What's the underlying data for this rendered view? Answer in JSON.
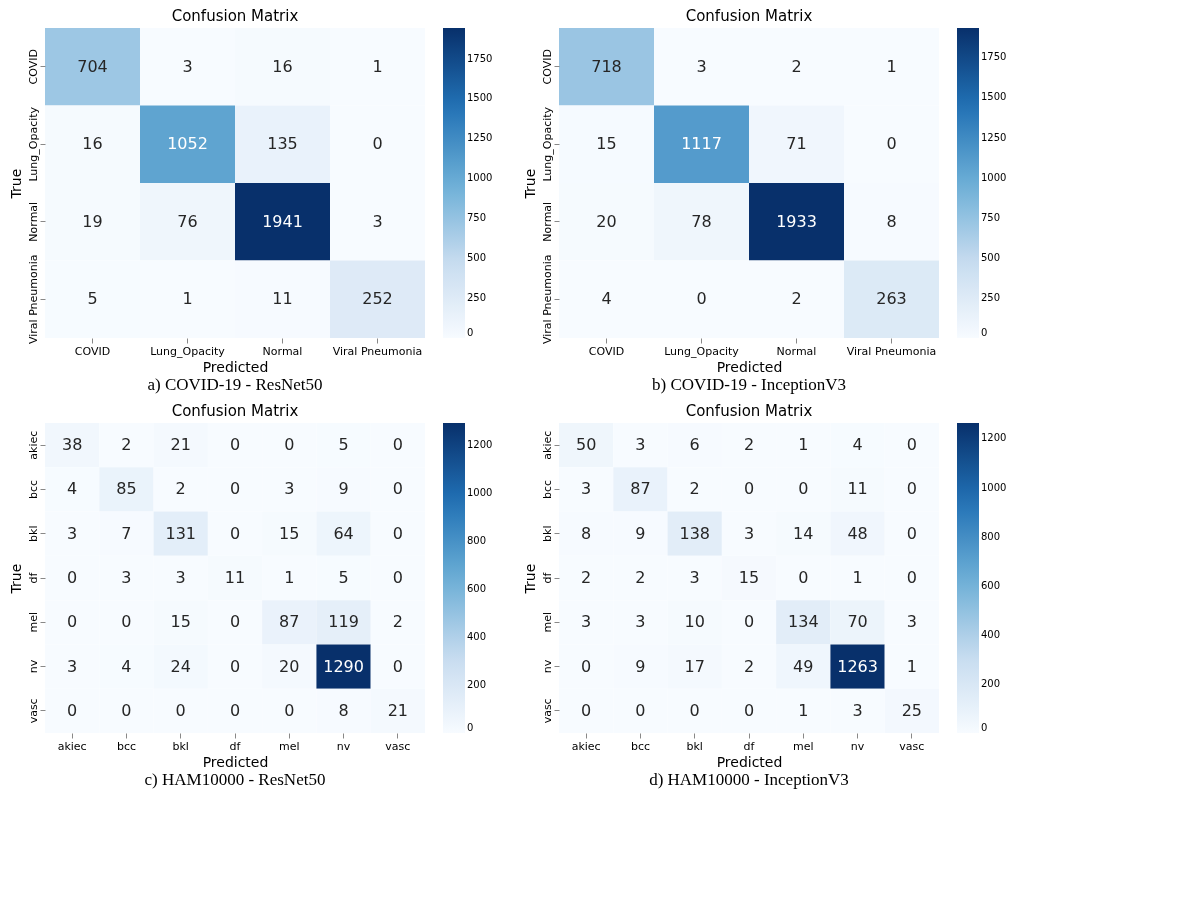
{
  "chart_data": [
    {
      "type": "heatmap",
      "title": "Confusion Matrix",
      "xlabel": "Predicted",
      "ylabel": "True",
      "categories": [
        "COVID",
        "Lung_Opacity",
        "Normal",
        "Viral Pneumonia"
      ],
      "y_categories": [
        "COVID",
        "Lung_Opacity",
        "Normal",
        "Viral Pneumonia"
      ],
      "cells": [
        [
          704,
          3,
          16,
          1
        ],
        [
          16,
          1052,
          135,
          0
        ],
        [
          19,
          76,
          1941,
          3
        ],
        [
          5,
          1,
          11,
          252
        ]
      ],
      "data_labels": true,
      "clim": [
        0,
        1941
      ],
      "cticks": [
        0,
        250,
        500,
        750,
        1000,
        1250,
        1500,
        1750
      ],
      "annotations": [
        "a) COVID-19 - ResNet50"
      ]
    },
    {
      "type": "heatmap",
      "title": "Confusion Matrix",
      "xlabel": "Predicted",
      "ylabel": "True",
      "categories": [
        "COVID",
        "Lung_Opacity",
        "Normal",
        "Viral Pneumonia"
      ],
      "y_categories": [
        "COVID",
        "Lung_Opacity",
        "Normal",
        "Viral Pneumonia"
      ],
      "cells": [
        [
          718,
          3,
          2,
          1
        ],
        [
          15,
          1117,
          71,
          0
        ],
        [
          20,
          78,
          1933,
          8
        ],
        [
          4,
          0,
          2,
          263
        ]
      ],
      "data_labels": true,
      "clim": [
        0,
        1933
      ],
      "cticks": [
        0,
        250,
        500,
        750,
        1000,
        1250,
        1500,
        1750
      ],
      "annotations": [
        "b) COVID-19 - InceptionV3"
      ]
    },
    {
      "type": "heatmap",
      "title": "Confusion Matrix",
      "xlabel": "Predicted",
      "ylabel": "True",
      "categories": [
        "akiec",
        "bcc",
        "bkl",
        "df",
        "mel",
        "nv",
        "vasc"
      ],
      "y_categories": [
        "akiec",
        "bcc",
        "bkl",
        "df",
        "mel",
        "nv",
        "vasc"
      ],
      "cells": [
        [
          38,
          2,
          21,
          0,
          0,
          5,
          0
        ],
        [
          4,
          85,
          2,
          0,
          3,
          9,
          0
        ],
        [
          3,
          7,
          131,
          0,
          15,
          64,
          0
        ],
        [
          0,
          3,
          3,
          11,
          1,
          5,
          0
        ],
        [
          0,
          0,
          15,
          0,
          87,
          119,
          2
        ],
        [
          3,
          4,
          24,
          0,
          20,
          1290,
          0
        ],
        [
          0,
          0,
          0,
          0,
          0,
          8,
          21
        ]
      ],
      "data_labels": true,
      "clim": [
        0,
        1290
      ],
      "cticks": [
        0,
        200,
        400,
        600,
        800,
        1000,
        1200
      ],
      "annotations": [
        "c) HAM10000 - ResNet50"
      ]
    },
    {
      "type": "heatmap",
      "title": "Confusion Matrix",
      "xlabel": "Predicted",
      "ylabel": "True",
      "categories": [
        "akiec",
        "bcc",
        "bkl",
        "df",
        "mel",
        "nv",
        "vasc"
      ],
      "y_categories": [
        "akiec",
        "bcc",
        "bkl",
        "df",
        "mel",
        "nv",
        "vasc"
      ],
      "cells": [
        [
          50,
          3,
          6,
          2,
          1,
          4,
          0
        ],
        [
          3,
          87,
          2,
          0,
          0,
          11,
          0
        ],
        [
          8,
          9,
          138,
          3,
          14,
          48,
          0
        ],
        [
          2,
          2,
          3,
          15,
          0,
          1,
          0
        ],
        [
          3,
          3,
          10,
          0,
          134,
          70,
          3
        ],
        [
          0,
          9,
          17,
          2,
          49,
          1263,
          1
        ],
        [
          0,
          0,
          0,
          0,
          1,
          3,
          25
        ]
      ],
      "data_labels": true,
      "clim": [
        0,
        1263
      ],
      "cticks": [
        0,
        200,
        400,
        600,
        800,
        1000,
        1200
      ],
      "annotations": [
        "d) HAM10000 - InceptionV3"
      ]
    }
  ]
}
